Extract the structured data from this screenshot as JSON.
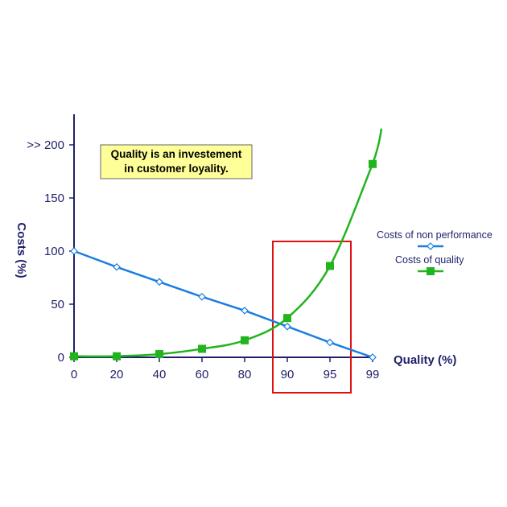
{
  "chart_data": {
    "type": "line",
    "x_ticks": [
      "0",
      "20",
      "40",
      "60",
      "80",
      "90",
      "95",
      "99"
    ],
    "y_ticks": [
      "0",
      "50",
      "100",
      "150",
      ">> 200"
    ],
    "y_tick_values": [
      0,
      50,
      100,
      150,
      200
    ],
    "ylim": [
      0,
      200
    ],
    "xlabel": "Quality (%)",
    "ylabel": "Costs (%)",
    "series": [
      {
        "name": "Costs of non performance",
        "color": "#1a7ee0",
        "marker": "diamond-open",
        "values": [
          100,
          85,
          71,
          57,
          44,
          29,
          14,
          0
        ]
      },
      {
        "name": "Costs of quality",
        "color": "#22b41e",
        "marker": "square-filled",
        "values": [
          1,
          1,
          3,
          8,
          16,
          37,
          86,
          182
        ]
      }
    ],
    "annotation": {
      "lines": [
        "Quality is an investement",
        "in customer loyality."
      ],
      "background": "#ffff99"
    },
    "highlight": {
      "color": "#e01010",
      "x_range": [
        "90",
        "95"
      ]
    },
    "legend_position": "right",
    "grid": false
  }
}
